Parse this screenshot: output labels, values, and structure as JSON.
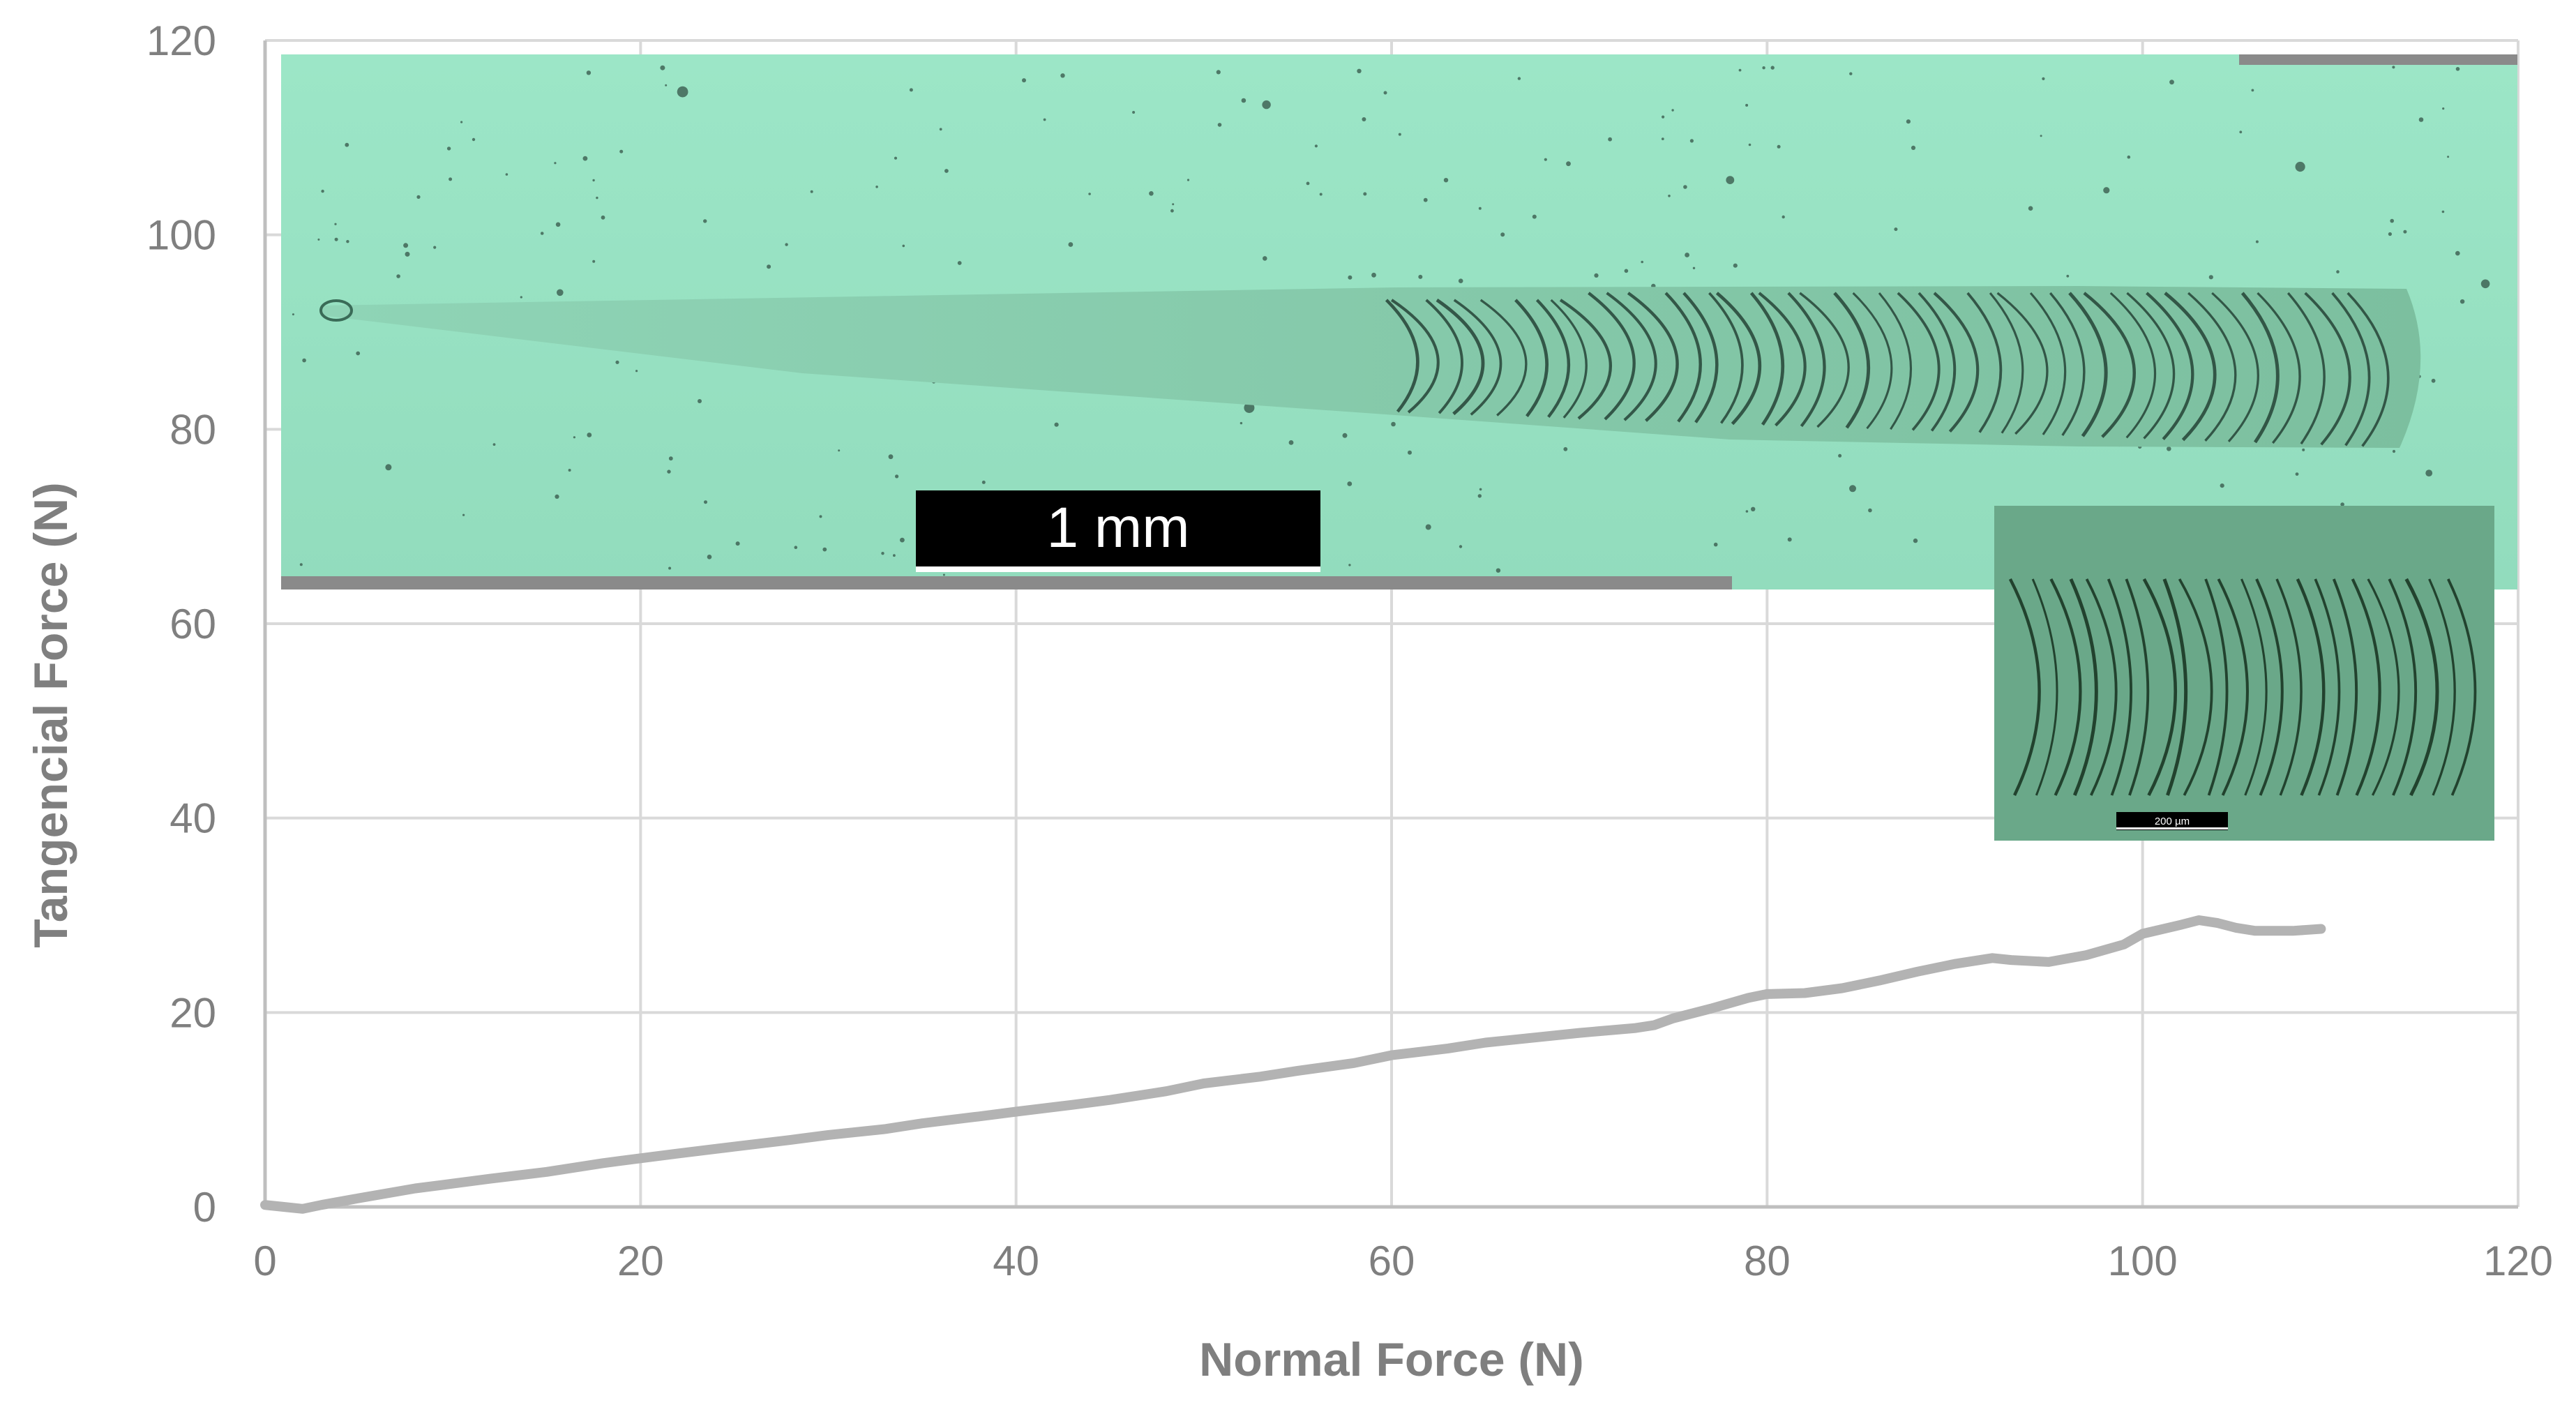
{
  "chart_data": {
    "type": "line",
    "xlabel": "Normal Force (N)",
    "ylabel": "Tangencial Force (N)",
    "xlim": [
      0,
      120
    ],
    "ylim": [
      0,
      120
    ],
    "x_ticks": [
      "0",
      "20",
      "40",
      "60",
      "80",
      "100",
      "120"
    ],
    "y_ticks": [
      "0",
      "20",
      "40",
      "60",
      "80",
      "100",
      "120"
    ],
    "grid": true,
    "line_color": "#b3b3b3",
    "series": [
      {
        "x": [
          0,
          1,
          2,
          3,
          5,
          8,
          10,
          12,
          15,
          18,
          20,
          22,
          25,
          28,
          30,
          33,
          35,
          38,
          40,
          43,
          45,
          48,
          50,
          53,
          55,
          58,
          60,
          63,
          65,
          68,
          70,
          73,
          74,
          75,
          77,
          79,
          80,
          82,
          84,
          86,
          88,
          90,
          92,
          93,
          95,
          97,
          99,
          100,
          102,
          103,
          104,
          105,
          106,
          107,
          108,
          109.5
        ],
        "y": [
          0.2,
          0,
          -0.2,
          0.2,
          0.9,
          1.9,
          2.4,
          2.9,
          3.6,
          4.5,
          5.0,
          5.5,
          6.2,
          6.9,
          7.4,
          8.0,
          8.6,
          9.3,
          9.8,
          10.5,
          11.0,
          11.9,
          12.7,
          13.4,
          14.0,
          14.8,
          15.6,
          16.3,
          16.9,
          17.5,
          17.9,
          18.4,
          18.7,
          19.4,
          20.4,
          21.5,
          21.9,
          22.0,
          22.5,
          23.3,
          24.2,
          25.0,
          25.6,
          25.4,
          25.2,
          25.9,
          27.0,
          28.1,
          29.0,
          29.5,
          29.2,
          28.7,
          28.4,
          28.4,
          28.4,
          28.6
        ]
      }
    ]
  },
  "micrograph": {
    "scale_bar_label": "1 mm",
    "track_color": "#7fcfae"
  },
  "inset_micrograph": {
    "scale_bar_label": "200 µm",
    "background_color": "#6aa889"
  }
}
